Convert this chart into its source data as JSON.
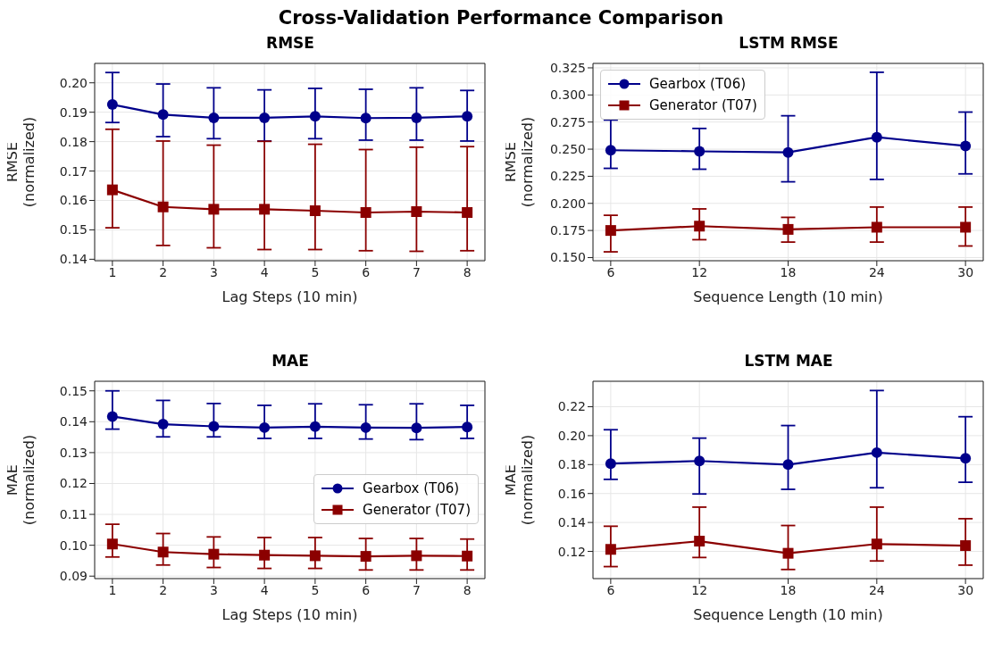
{
  "chart_data": [
    {
      "type": "line",
      "title": "RMSE",
      "xlabel": "Lag Steps (10 min)",
      "ylabel": "RMSE\n(normalized)",
      "annotations": [
        "Cross-Validation Performance Comparison"
      ],
      "x": [
        1,
        2,
        3,
        4,
        5,
        6,
        7,
        8
      ],
      "xlim": [
        0.65,
        8.35
      ],
      "xticks": [
        1,
        2,
        3,
        4,
        5,
        6,
        7,
        8
      ],
      "ylim": [
        0.1395,
        0.2066
      ],
      "yticks": [
        {
          "value": 0.14,
          "label": "0.14"
        },
        {
          "value": 0.15,
          "label": "0.15"
        },
        {
          "value": 0.16,
          "label": "0.16"
        },
        {
          "value": 0.17,
          "label": "0.17"
        },
        {
          "value": 0.18,
          "label": "0.18"
        },
        {
          "value": 0.19,
          "label": "0.19"
        },
        {
          "value": 0.2,
          "label": "0.20"
        }
      ],
      "grid": true,
      "legend": false,
      "line_style": "solid",
      "series": [
        {
          "color": "#00008b",
          "marker": "circle",
          "values": [
            0.1926,
            0.1892,
            0.1881,
            0.1881,
            0.1886,
            0.188,
            0.1881,
            0.1886
          ],
          "errors": [
            [
              0.1865,
              0.2035
            ],
            [
              0.1817,
              0.1996
            ],
            [
              0.181,
              0.1983
            ],
            [
              0.1802,
              0.1976
            ],
            [
              0.181,
              0.1981
            ],
            [
              0.1805,
              0.1978
            ],
            [
              0.1805,
              0.1983
            ],
            [
              0.1802,
              0.1974
            ]
          ]
        },
        {
          "color": "#8b0000",
          "marker": "square",
          "values": [
            0.1636,
            0.1578,
            0.157,
            0.157,
            0.1565,
            0.1559,
            0.1562,
            0.1559
          ],
          "errors": [
            [
              0.1507,
              0.1842
            ],
            [
              0.1447,
              0.1802
            ],
            [
              0.1439,
              0.1788
            ],
            [
              0.1433,
              0.1801
            ],
            [
              0.1433,
              0.1791
            ],
            [
              0.1429,
              0.1773
            ],
            [
              0.1427,
              0.1781
            ],
            [
              0.1429,
              0.1783
            ]
          ]
        }
      ]
    },
    {
      "type": "line",
      "title": "LSTM RMSE",
      "xlabel": "Sequence Length (10 min)",
      "ylabel": "RMSE\n(normalized)",
      "x": [
        6,
        12,
        18,
        24,
        30
      ],
      "xlim": [
        4.8,
        31.2
      ],
      "xticks": [
        6,
        12,
        18,
        24,
        30
      ],
      "ylim": [
        0.1471,
        0.3291
      ],
      "yticks": [
        {
          "value": 0.15,
          "label": "0.150"
        },
        {
          "value": 0.175,
          "label": "0.175"
        },
        {
          "value": 0.2,
          "label": "0.200"
        },
        {
          "value": 0.225,
          "label": "0.225"
        },
        {
          "value": 0.25,
          "label": "0.250"
        },
        {
          "value": 0.275,
          "label": "0.275"
        },
        {
          "value": 0.3,
          "label": "0.300"
        },
        {
          "value": 0.325,
          "label": "0.325"
        }
      ],
      "grid": true,
      "legend": "top left",
      "line_style": "solid",
      "series": [
        {
          "name": "Gearbox (T06)",
          "color": "#00008b",
          "marker": "circle",
          "values": [
            0.249,
            0.248,
            0.247,
            0.261,
            0.253
          ],
          "errors": [
            [
              0.2323,
              0.2769
            ],
            [
              0.2315,
              0.2691
            ],
            [
              0.2199,
              0.2808
            ],
            [
              0.2221,
              0.3209
            ],
            [
              0.2272,
              0.2842
            ]
          ]
        },
        {
          "name": "Generator (T07)",
          "color": "#8b0000",
          "marker": "square",
          "values": [
            0.175,
            0.179,
            0.176,
            0.178,
            0.178
          ],
          "errors": [
            [
              0.1553,
              0.189
            ],
            [
              0.1665,
              0.1949
            ],
            [
              0.1643,
              0.1871
            ],
            [
              0.1643,
              0.1966
            ],
            [
              0.1607,
              0.1966
            ]
          ]
        }
      ]
    },
    {
      "type": "line",
      "title": "MAE",
      "xlabel": "Lag Steps (10 min)",
      "ylabel": "MAE\n(normalized)",
      "x": [
        1,
        2,
        3,
        4,
        5,
        6,
        7,
        8
      ],
      "xlim": [
        0.65,
        8.35
      ],
      "xticks": [
        1,
        2,
        3,
        4,
        5,
        6,
        7,
        8
      ],
      "ylim": [
        0.0892,
        0.1531
      ],
      "yticks": [
        {
          "value": 0.09,
          "label": "0.09"
        },
        {
          "value": 0.1,
          "label": "0.10"
        },
        {
          "value": 0.11,
          "label": "0.11"
        },
        {
          "value": 0.12,
          "label": "0.12"
        },
        {
          "value": 0.13,
          "label": "0.13"
        },
        {
          "value": 0.14,
          "label": "0.14"
        },
        {
          "value": 0.15,
          "label": "0.15"
        }
      ],
      "grid": true,
      "legend": "right",
      "line_style": "solid",
      "series": [
        {
          "name": "Gearbox (T06)",
          "color": "#00008b",
          "marker": "circle",
          "values": [
            0.1417,
            0.1392,
            0.1385,
            0.1381,
            0.1384,
            0.1381,
            0.138,
            0.1383
          ],
          "errors": [
            [
              0.1376,
              0.15
            ],
            [
              0.1351,
              0.1469
            ],
            [
              0.1351,
              0.1459
            ],
            [
              0.1346,
              0.1453
            ],
            [
              0.1346,
              0.1458
            ],
            [
              0.1344,
              0.1455
            ],
            [
              0.1342,
              0.1458
            ],
            [
              0.1346,
              0.1453
            ]
          ]
        },
        {
          "name": "Generator (T07)",
          "color": "#8b0000",
          "marker": "square",
          "values": [
            0.1004,
            0.0978,
            0.0971,
            0.0968,
            0.0966,
            0.0964,
            0.0966,
            0.0965
          ],
          "errors": [
            [
              0.0962,
              0.1068
            ],
            [
              0.0936,
              0.1038
            ],
            [
              0.0928,
              0.1027
            ],
            [
              0.0925,
              0.1025
            ],
            [
              0.0925,
              0.1025
            ],
            [
              0.092,
              0.1022
            ],
            [
              0.092,
              0.1022
            ],
            [
              0.092,
              0.102
            ]
          ]
        }
      ]
    },
    {
      "type": "line",
      "title": "LSTM MAE",
      "xlabel": "Sequence Length (10 min)",
      "ylabel": "MAE\n(normalized)",
      "x": [
        6,
        12,
        18,
        24,
        30
      ],
      "xlim": [
        4.8,
        31.2
      ],
      "xticks": [
        6,
        12,
        18,
        24,
        30
      ],
      "ylim": [
        0.1012,
        0.2376
      ],
      "yticks": [
        {
          "value": 0.12,
          "label": "0.12"
        },
        {
          "value": 0.14,
          "label": "0.14"
        },
        {
          "value": 0.16,
          "label": "0.16"
        },
        {
          "value": 0.18,
          "label": "0.18"
        },
        {
          "value": 0.2,
          "label": "0.20"
        },
        {
          "value": 0.22,
          "label": "0.22"
        }
      ],
      "grid": true,
      "legend": false,
      "line_style": "solid",
      "series": [
        {
          "color": "#00008b",
          "marker": "circle",
          "values": [
            0.1807,
            0.1825,
            0.18,
            0.1883,
            0.1843
          ],
          "errors": [
            [
              0.1698,
              0.2041
            ],
            [
              0.1597,
              0.1983
            ],
            [
              0.1629,
              0.207
            ],
            [
              0.164,
              0.2312
            ],
            [
              0.1678,
              0.2131
            ]
          ]
        },
        {
          "color": "#8b0000",
          "marker": "square",
          "values": [
            0.1214,
            0.1271,
            0.1187,
            0.1251,
            0.124
          ],
          "errors": [
            [
              0.1095,
              0.1374
            ],
            [
              0.1158,
              0.1506
            ],
            [
              0.1075,
              0.1379
            ],
            [
              0.1134,
              0.1506
            ],
            [
              0.1105,
              0.1426
            ]
          ]
        }
      ]
    }
  ]
}
